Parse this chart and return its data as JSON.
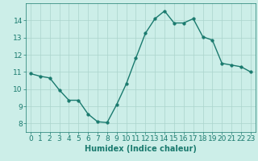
{
  "x": [
    0,
    1,
    2,
    3,
    4,
    5,
    6,
    7,
    8,
    9,
    10,
    11,
    12,
    13,
    14,
    15,
    16,
    17,
    18,
    19,
    20,
    21,
    22,
    23
  ],
  "y": [
    10.9,
    10.75,
    10.65,
    9.95,
    9.35,
    9.35,
    8.55,
    8.1,
    8.05,
    9.1,
    10.3,
    11.8,
    13.25,
    14.1,
    14.55,
    13.85,
    13.85,
    14.1,
    13.05,
    12.85,
    11.5,
    11.4,
    11.3,
    11.0
  ],
  "title": "",
  "xlabel": "Humidex (Indice chaleur)",
  "ylabel": "",
  "xlim": [
    -0.5,
    23.5
  ],
  "ylim": [
    7.5,
    15.0
  ],
  "yticks": [
    8,
    9,
    10,
    11,
    12,
    13,
    14
  ],
  "xticks": [
    0,
    1,
    2,
    3,
    4,
    5,
    6,
    7,
    8,
    9,
    10,
    11,
    12,
    13,
    14,
    15,
    16,
    17,
    18,
    19,
    20,
    21,
    22,
    23
  ],
  "line_color": "#1a7a6e",
  "marker_color": "#1a7a6e",
  "bg_color": "#cceee8",
  "grid_color": "#aad4cc",
  "text_color": "#1a7a6e",
  "xlabel_fontsize": 7,
  "tick_fontsize": 6.5,
  "line_width": 1.0,
  "marker_size": 2.5
}
